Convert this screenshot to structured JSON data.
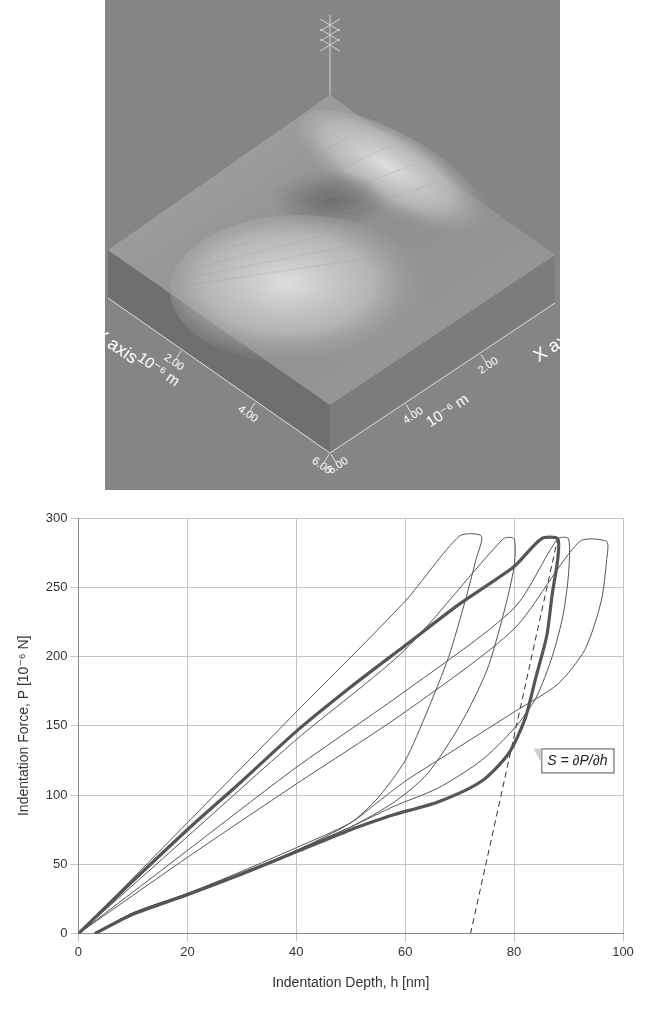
{
  "chart_data": {
    "type": "line",
    "x_label": "Indentation Depth, h [nm]",
    "y_label": "Indentation Force, P [10⁻⁶ N]",
    "xlim": [
      0,
      100
    ],
    "xticks": [
      0,
      20,
      40,
      60,
      80,
      100
    ],
    "ylim": [
      0,
      300
    ],
    "yticks": [
      0,
      50,
      100,
      150,
      200,
      250,
      300
    ],
    "grid": true,
    "annotations": [
      {
        "text": "S = ∂P/∂h",
        "x": 85,
        "y": 125
      }
    ],
    "series": [
      {
        "color": "#555555",
        "line_style": "thick",
        "x": [
          0,
          10,
          20,
          30,
          40,
          50,
          60,
          70,
          80,
          85,
          88,
          88,
          87,
          86,
          84,
          82,
          79,
          74,
          66,
          58,
          55,
          50,
          40,
          30,
          20,
          10,
          3
        ],
        "values": [
          0,
          38,
          75,
          110,
          146,
          178,
          208,
          238,
          265,
          285,
          285,
          270,
          245,
          215,
          185,
          155,
          130,
          110,
          95,
          86,
          82,
          75,
          59,
          43,
          28,
          14,
          0
        ]
      },
      {
        "color": "#555555",
        "line_style": "solid",
        "x": [
          0,
          20,
          40,
          60,
          70,
          74,
          73,
          71,
          68,
          64,
          60,
          55,
          50,
          40,
          30,
          20,
          10,
          3
        ],
        "values": [
          0,
          80,
          160,
          240,
          287,
          287,
          270,
          240,
          200,
          160,
          125,
          98,
          80,
          60,
          44,
          29,
          15,
          0
        ]
      },
      {
        "color": "#555555",
        "line_style": "solid",
        "x": [
          0,
          20,
          40,
          60,
          78,
          80,
          80,
          78,
          75,
          70,
          64,
          58,
          50,
          40,
          30,
          20,
          10,
          3
        ],
        "values": [
          0,
          70,
          140,
          205,
          285,
          285,
          265,
          230,
          190,
          150,
          115,
          95,
          77,
          60,
          43,
          28,
          14,
          0
        ]
      },
      {
        "color": "#555555",
        "line_style": "solid",
        "x": [
          0,
          20,
          40,
          60,
          80,
          88,
          90,
          90,
          89,
          87,
          84,
          80,
          74,
          66,
          58,
          50,
          40,
          30,
          20,
          10,
          3
        ],
        "values": [
          0,
          60,
          120,
          175,
          235,
          285,
          285,
          260,
          230,
          200,
          170,
          148,
          125,
          105,
          92,
          77,
          60,
          43,
          28,
          14,
          0
        ]
      },
      {
        "color": "#555555",
        "line_style": "solid",
        "x": [
          0,
          20,
          40,
          60,
          80,
          92,
          97,
          97,
          96,
          93,
          88,
          80,
          70,
          60,
          55,
          50,
          40,
          30,
          20,
          10,
          3
        ],
        "values": [
          0,
          55,
          108,
          160,
          220,
          283,
          283,
          270,
          240,
          205,
          180,
          160,
          135,
          110,
          95,
          80,
          62,
          45,
          29,
          15,
          0
        ]
      },
      {
        "color": "#333333",
        "line_style": "dashed",
        "x": [
          72,
          88
        ],
        "values": [
          0,
          285
        ]
      }
    ]
  },
  "topography": {
    "x_label": "X axis",
    "y_label": "Y axis",
    "x_unit": "10⁻⁶ m",
    "y_unit": "10⁻⁶ m",
    "xlim": [
      0,
      6
    ],
    "ylim": [
      0,
      6
    ],
    "xticks": [
      {
        "value": 2,
        "label": "2.00"
      },
      {
        "value": 4,
        "label": "4.00"
      },
      {
        "value": 6,
        "label": "6.00"
      }
    ],
    "yticks": [
      {
        "value": 2,
        "label": "2.00"
      },
      {
        "value": 4,
        "label": "4.00"
      },
      {
        "value": 6,
        "label": "6.00"
      }
    ]
  }
}
